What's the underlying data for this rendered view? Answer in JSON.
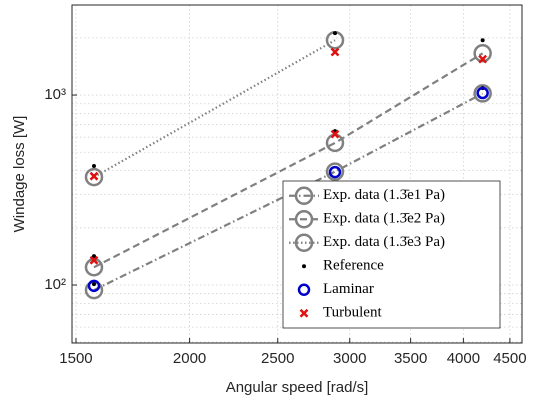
{
  "chart_data": {
    "type": "line",
    "x_label": "Angular speed [rad/s]",
    "y_label": "Windage loss [W]",
    "xlog": true,
    "ylog": true,
    "grid": true,
    "minor_grid": true,
    "legend": "lower right",
    "xlim": [
      1485,
      4640
    ],
    "ylim": [
      49.5,
      2980
    ],
    "xticks": [
      1500,
      2000,
      2500,
      3000,
      3500,
      4000,
      4500
    ],
    "yticks": [
      {
        "value": 100,
        "label": "10²"
      },
      {
        "value": 1000,
        "label": "10³"
      }
    ],
    "series": [
      {
        "name": "Exp. data (1.3̄e1 Pa)",
        "color": "#808080",
        "style": "dashdot",
        "marker": "circle",
        "x": [
          1570,
          2890,
          4200
        ],
        "values": [
          94,
          395,
          1020
        ]
      },
      {
        "name": "Exp. data (1.3̄e2 Pa)",
        "color": "#808080",
        "style": "dashed",
        "marker": "circle",
        "x": [
          1570,
          2890,
          4200
        ],
        "values": [
          124,
          560,
          1660
        ]
      },
      {
        "name": "Exp. data (1.3̄e3 Pa)",
        "color": "#808080",
        "style": "dotted",
        "marker": "circle",
        "x": [
          1570,
          2890,
          4200
        ],
        "values": [
          370,
          1945,
          null
        ]
      },
      {
        "name": "Reference",
        "color": "#000000",
        "style": "none",
        "marker": "dot",
        "x": [
          1570,
          1570,
          1570,
          2890,
          2890,
          4200,
          4200
        ],
        "values": [
          101,
          142,
          423,
          646,
          2120,
          1088,
          1945
        ]
      },
      {
        "name": "Laminar",
        "color": "#0000cc",
        "style": "none",
        "marker": "ring",
        "x": [
          1570,
          2890,
          4200
        ],
        "values": [
          99,
          393,
          1025
        ]
      },
      {
        "name": "Turbulent",
        "color": "#e01010",
        "style": "none",
        "marker": "cross",
        "x": [
          1570,
          1570,
          2890,
          2890,
          4200
        ],
        "values": [
          135,
          374,
          623,
          1685,
          1547
        ]
      }
    ]
  }
}
